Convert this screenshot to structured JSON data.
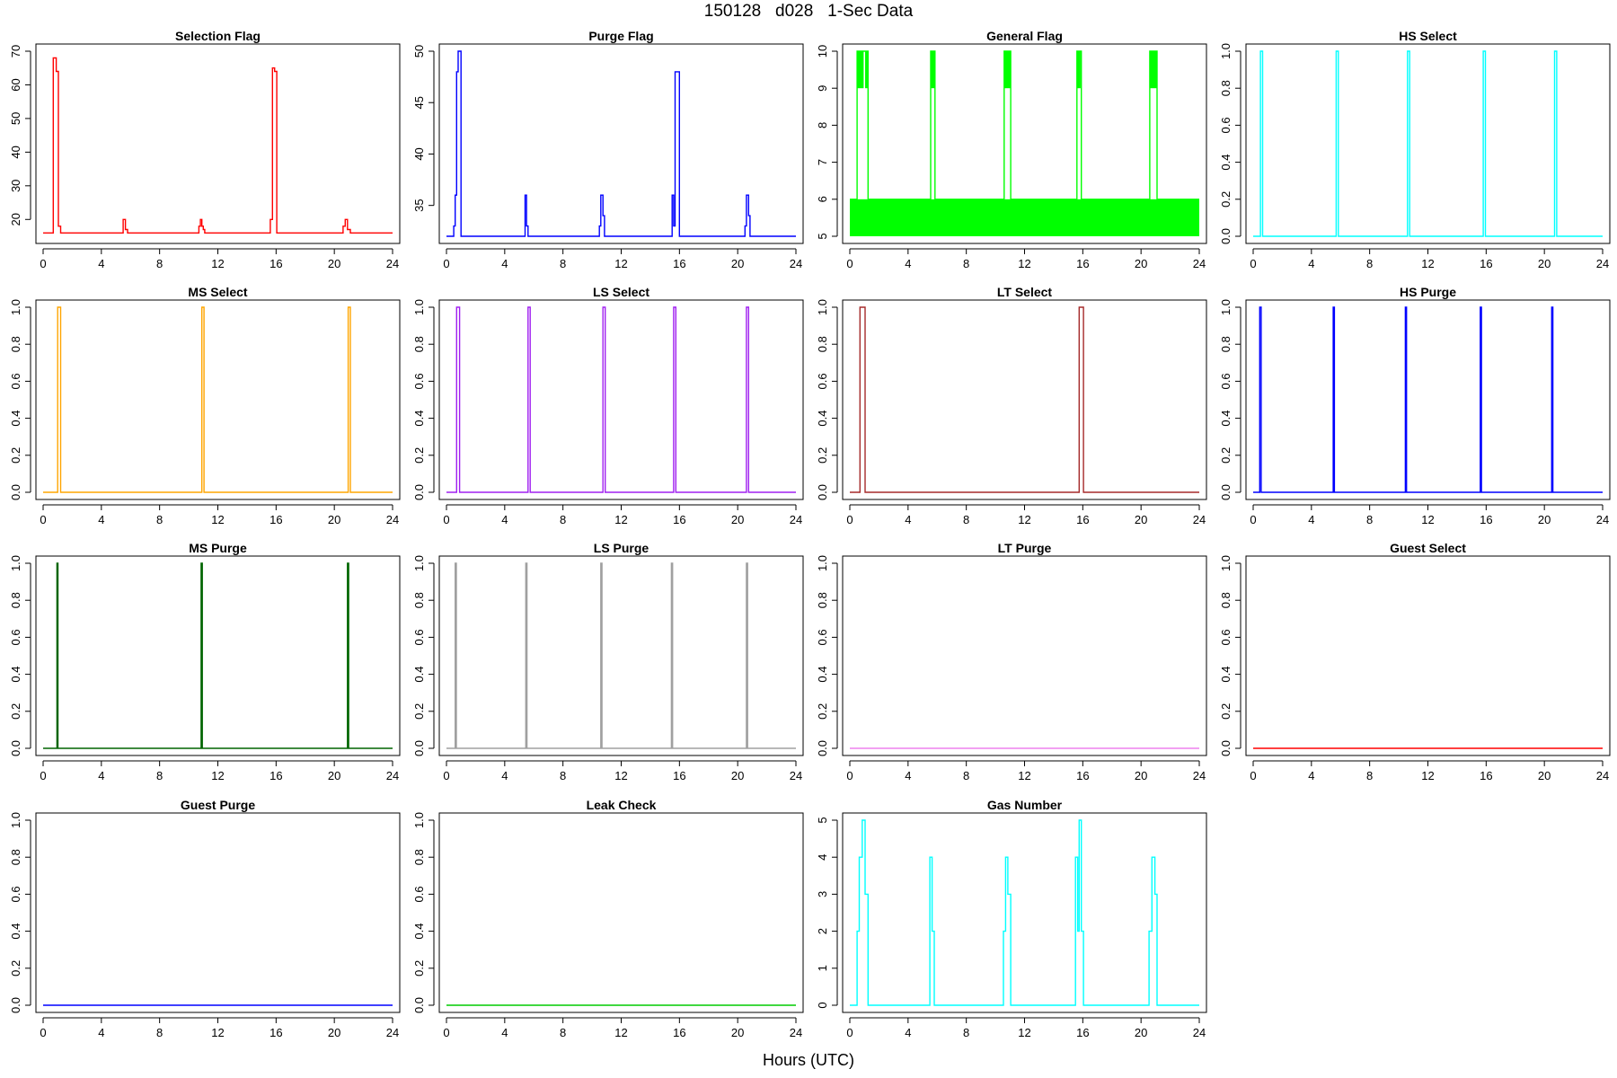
{
  "page_title": "150128   d028   1-Sec Data",
  "x_axis_title": "Hours (UTC)",
  "chart_data": [
    {
      "type": "line",
      "title": "Selection Flag",
      "color": "#ff0000",
      "xlim": [
        0,
        24
      ],
      "ylim": [
        15,
        70
      ],
      "x_ticks": [
        0,
        4,
        8,
        12,
        16,
        20,
        24
      ],
      "y_ticks": [
        20,
        30,
        40,
        50,
        60,
        70
      ],
      "series": [
        {
          "x": [
            0,
            0.7,
            0.7,
            0.9,
            0.9,
            1.05,
            1.05,
            1.2,
            1.2,
            5.5,
            5.5,
            5.65,
            5.65,
            5.8,
            5.8,
            10.7,
            10.7,
            10.8,
            10.8,
            10.9,
            10.9,
            11.0,
            11.0,
            11.1,
            11.1,
            15.6,
            15.6,
            15.75,
            15.75,
            15.9,
            15.9,
            16.05,
            16.05,
            20.6,
            20.6,
            20.75,
            20.75,
            20.9,
            20.9,
            21.1,
            21.1,
            24
          ],
          "y": [
            16,
            16,
            68,
            68,
            64,
            64,
            18,
            18,
            16,
            16,
            20,
            20,
            17,
            17,
            16,
            16,
            18,
            18,
            20,
            20,
            18,
            18,
            17,
            17,
            16,
            16,
            20,
            20,
            65,
            65,
            64,
            64,
            16,
            16,
            18,
            18,
            20,
            20,
            17,
            17,
            16,
            16
          ]
        }
      ]
    },
    {
      "type": "line",
      "title": "Purge Flag",
      "color": "#0000ff",
      "xlim": [
        0,
        24
      ],
      "ylim": [
        32,
        50
      ],
      "x_ticks": [
        0,
        4,
        8,
        12,
        16,
        20,
        24
      ],
      "y_ticks": [
        35,
        40,
        45,
        50
      ],
      "series": [
        {
          "x": [
            0,
            0.5,
            0.5,
            0.6,
            0.6,
            0.7,
            0.7,
            0.8,
            0.8,
            1.0,
            1.0,
            5.4,
            5.4,
            5.5,
            5.5,
            5.6,
            5.6,
            10.5,
            10.5,
            10.6,
            10.6,
            10.75,
            10.75,
            10.85,
            10.85,
            15.5,
            15.5,
            15.6,
            15.6,
            15.7,
            15.7,
            16.0,
            16.0,
            20.5,
            20.5,
            20.6,
            20.6,
            20.75,
            20.75,
            20.85,
            20.85,
            24
          ],
          "y": [
            32,
            32,
            33,
            33,
            36,
            36,
            48,
            48,
            50,
            50,
            32,
            32,
            36,
            36,
            33,
            33,
            32,
            32,
            33,
            33,
            36,
            36,
            34,
            34,
            32,
            32,
            36,
            36,
            33,
            33,
            48,
            48,
            32,
            32,
            33,
            33,
            36,
            36,
            34,
            34,
            32,
            32
          ]
        }
      ]
    },
    {
      "type": "area",
      "title": "General Flag",
      "color": "#00ff00",
      "xlim": [
        0,
        24
      ],
      "ylim": [
        5,
        10
      ],
      "x_ticks": [
        0,
        4,
        8,
        12,
        16,
        20,
        24
      ],
      "y_ticks": [
        5,
        6,
        7,
        8,
        9,
        10
      ],
      "bands": [
        {
          "x0": 0,
          "x1": 24,
          "y0": 5,
          "y1": 6
        }
      ],
      "bursts": [
        {
          "x0": 0.5,
          "x1": 0.95,
          "y0": 9,
          "y1": 10
        },
        {
          "x0": 1.05,
          "x1": 1.25,
          "y0": 9,
          "y1": 10
        },
        {
          "x0": 5.55,
          "x1": 5.85,
          "y0": 9,
          "y1": 10
        },
        {
          "x0": 10.6,
          "x1": 11.05,
          "y0": 9,
          "y1": 10
        },
        {
          "x0": 15.6,
          "x1": 15.85,
          "y0": 9,
          "y1": 10
        },
        {
          "x0": 20.6,
          "x1": 21.1,
          "y0": 9,
          "y1": 10
        }
      ],
      "series": [
        {
          "x": [
            0,
            0.5,
            0.5,
            1.25,
            1.25,
            5.55,
            5.55,
            5.85,
            5.85,
            10.6,
            10.6,
            11.05,
            11.05,
            15.6,
            15.6,
            15.9,
            15.9,
            20.6,
            20.6,
            21.1,
            21.1,
            24
          ],
          "y": [
            6,
            6,
            10,
            10,
            6,
            6,
            10,
            10,
            6,
            6,
            10,
            10,
            6,
            6,
            10,
            10,
            6,
            6,
            10,
            10,
            6,
            6
          ]
        }
      ]
    },
    {
      "type": "line",
      "title": "HS Select",
      "color": "#00ffff",
      "xlim": [
        0,
        24
      ],
      "ylim": [
        0,
        1
      ],
      "x_ticks": [
        0,
        4,
        8,
        12,
        16,
        20,
        24
      ],
      "y_ticks": [
        0.0,
        0.2,
        0.4,
        0.6,
        0.8,
        1.0
      ],
      "series": [
        {
          "x": [
            0,
            0.5,
            0.5,
            0.65,
            0.65,
            5.7,
            5.7,
            5.85,
            5.85,
            10.6,
            10.6,
            10.75,
            10.75,
            15.8,
            15.8,
            15.95,
            15.95,
            20.7,
            20.7,
            20.85,
            20.85,
            24
          ],
          "y": [
            0,
            0,
            1,
            1,
            0,
            0,
            1,
            1,
            0,
            0,
            1,
            1,
            0,
            0,
            1,
            1,
            0,
            0,
            1,
            1,
            0,
            0
          ]
        }
      ]
    },
    {
      "type": "line",
      "title": "MS Select",
      "color": "#ffa500",
      "xlim": [
        0,
        24
      ],
      "ylim": [
        0,
        1
      ],
      "x_ticks": [
        0,
        4,
        8,
        12,
        16,
        20,
        24
      ],
      "y_ticks": [
        0.0,
        0.2,
        0.4,
        0.6,
        0.8,
        1.0
      ],
      "series": [
        {
          "x": [
            0,
            1.0,
            1.0,
            1.2,
            1.2,
            10.9,
            10.9,
            11.05,
            11.05,
            20.95,
            20.95,
            21.1,
            21.1,
            24
          ],
          "y": [
            0,
            0,
            1,
            1,
            0,
            0,
            1,
            1,
            0,
            0,
            1,
            1,
            0,
            0
          ]
        }
      ]
    },
    {
      "type": "line",
      "title": "LS Select",
      "color": "#a020f0",
      "xlim": [
        0,
        24
      ],
      "ylim": [
        0,
        1
      ],
      "x_ticks": [
        0,
        4,
        8,
        12,
        16,
        20,
        24
      ],
      "y_ticks": [
        0.0,
        0.2,
        0.4,
        0.6,
        0.8,
        1.0
      ],
      "series": [
        {
          "x": [
            0,
            0.7,
            0.7,
            0.9,
            0.9,
            5.6,
            5.6,
            5.75,
            5.75,
            10.75,
            10.75,
            10.9,
            10.9,
            15.6,
            15.6,
            15.75,
            15.75,
            20.6,
            20.6,
            20.75,
            20.75,
            24
          ],
          "y": [
            0,
            0,
            1,
            1,
            0,
            0,
            1,
            1,
            0,
            0,
            1,
            1,
            0,
            0,
            1,
            1,
            0,
            0,
            1,
            1,
            0,
            0
          ]
        }
      ]
    },
    {
      "type": "line",
      "title": "LT Select",
      "color": "#a52a2a",
      "xlim": [
        0,
        24
      ],
      "ylim": [
        0,
        1
      ],
      "x_ticks": [
        0,
        4,
        8,
        12,
        16,
        20,
        24
      ],
      "y_ticks": [
        0.0,
        0.2,
        0.4,
        0.6,
        0.8,
        1.0
      ],
      "series": [
        {
          "x": [
            0,
            0.7,
            0.7,
            1.05,
            1.05,
            15.75,
            15.75,
            16.05,
            16.05,
            24
          ],
          "y": [
            0,
            0,
            1,
            1,
            0,
            0,
            1,
            1,
            0,
            0
          ]
        }
      ]
    },
    {
      "type": "line",
      "title": "HS Purge",
      "color": "#0000ff",
      "xlim": [
        0,
        24
      ],
      "ylim": [
        0,
        1
      ],
      "x_ticks": [
        0,
        4,
        8,
        12,
        16,
        20,
        24
      ],
      "y_ticks": [
        0.0,
        0.2,
        0.4,
        0.6,
        0.8,
        1.0
      ],
      "series": [
        {
          "x": [
            0,
            0.45,
            0.45,
            0.55,
            0.55,
            5.5,
            5.5,
            5.58,
            5.58,
            10.45,
            10.45,
            10.53,
            10.53,
            15.6,
            15.6,
            15.68,
            15.68,
            20.5,
            20.5,
            20.58,
            20.58,
            24
          ],
          "y": [
            0,
            0,
            1,
            1,
            0,
            0,
            1,
            1,
            0,
            0,
            1,
            1,
            0,
            0,
            1,
            1,
            0,
            0,
            1,
            1,
            0,
            0
          ]
        }
      ]
    },
    {
      "type": "line",
      "title": "MS Purge",
      "color": "#006400",
      "xlim": [
        0,
        24
      ],
      "ylim": [
        0,
        1
      ],
      "x_ticks": [
        0,
        4,
        8,
        12,
        16,
        20,
        24
      ],
      "y_ticks": [
        0.0,
        0.2,
        0.4,
        0.6,
        0.8,
        1.0
      ],
      "series": [
        {
          "x": [
            0,
            0.95,
            0.95,
            1.02,
            1.02,
            10.85,
            10.85,
            10.93,
            10.93,
            20.9,
            20.9,
            20.98,
            20.98,
            24
          ],
          "y": [
            0,
            0,
            1,
            1,
            0,
            0,
            1,
            1,
            0,
            0,
            1,
            1,
            0,
            0
          ]
        }
      ]
    },
    {
      "type": "line",
      "title": "LS Purge",
      "color": "#a0a0a0",
      "xlim": [
        0,
        24
      ],
      "ylim": [
        0,
        1
      ],
      "x_ticks": [
        0,
        4,
        8,
        12,
        16,
        20,
        24
      ],
      "y_ticks": [
        0.0,
        0.2,
        0.4,
        0.6,
        0.8,
        1.0
      ],
      "series": [
        {
          "x": [
            0,
            0.6,
            0.6,
            0.68,
            0.68,
            5.45,
            5.45,
            5.53,
            5.53,
            10.6,
            10.6,
            10.68,
            10.68,
            15.45,
            15.45,
            15.53,
            15.53,
            20.6,
            20.6,
            20.68,
            20.68,
            24
          ],
          "y": [
            0,
            0,
            1,
            1,
            0,
            0,
            1,
            1,
            0,
            0,
            1,
            1,
            0,
            0,
            1,
            1,
            0,
            0,
            1,
            1,
            0,
            0
          ]
        }
      ]
    },
    {
      "type": "line",
      "title": "LT Purge",
      "color": "#ee82ee",
      "xlim": [
        0,
        24
      ],
      "ylim": [
        0,
        1
      ],
      "x_ticks": [
        0,
        4,
        8,
        12,
        16,
        20,
        24
      ],
      "y_ticks": [
        0.0,
        0.2,
        0.4,
        0.6,
        0.8,
        1.0
      ],
      "series": [
        {
          "x": [
            0,
            24
          ],
          "y": [
            0,
            0
          ]
        }
      ]
    },
    {
      "type": "line",
      "title": "Guest Select",
      "color": "#ff0000",
      "xlim": [
        0,
        24
      ],
      "ylim": [
        0,
        1
      ],
      "x_ticks": [
        0,
        4,
        8,
        12,
        16,
        20,
        24
      ],
      "y_ticks": [
        0.0,
        0.2,
        0.4,
        0.6,
        0.8,
        1.0
      ],
      "series": [
        {
          "x": [
            0,
            24
          ],
          "y": [
            0,
            0
          ]
        }
      ]
    },
    {
      "type": "line",
      "title": "Guest Purge",
      "color": "#0000ff",
      "xlim": [
        0,
        24
      ],
      "ylim": [
        0,
        1
      ],
      "x_ticks": [
        0,
        4,
        8,
        12,
        16,
        20,
        24
      ],
      "y_ticks": [
        0.0,
        0.2,
        0.4,
        0.6,
        0.8,
        1.0
      ],
      "series": [
        {
          "x": [
            0,
            24
          ],
          "y": [
            0,
            0
          ]
        }
      ]
    },
    {
      "type": "line",
      "title": "Leak Check",
      "color": "#00cc00",
      "xlim": [
        0,
        24
      ],
      "ylim": [
        0,
        1
      ],
      "x_ticks": [
        0,
        4,
        8,
        12,
        16,
        20,
        24
      ],
      "y_ticks": [
        0.0,
        0.2,
        0.4,
        0.6,
        0.8,
        1.0
      ],
      "series": [
        {
          "x": [
            0,
            24
          ],
          "y": [
            0,
            0
          ]
        }
      ]
    },
    {
      "type": "line",
      "title": "Gas Number",
      "color": "#00ffff",
      "xlim": [
        0,
        24
      ],
      "ylim": [
        0,
        5
      ],
      "x_ticks": [
        0,
        4,
        8,
        12,
        16,
        20,
        24
      ],
      "y_ticks": [
        0,
        1,
        2,
        3,
        4,
        5
      ],
      "series": [
        {
          "x": [
            0,
            0.5,
            0.5,
            0.65,
            0.65,
            0.85,
            0.85,
            1.05,
            1.05,
            1.25,
            1.25,
            5.5,
            5.5,
            5.65,
            5.65,
            5.8,
            5.8,
            10.55,
            10.55,
            10.7,
            10.7,
            10.85,
            10.85,
            11.05,
            11.05,
            15.5,
            15.5,
            15.65,
            15.65,
            15.75,
            15.75,
            15.9,
            15.9,
            16.05,
            16.05,
            20.55,
            20.55,
            20.75,
            20.75,
            20.95,
            20.95,
            21.1,
            21.1,
            24
          ],
          "y": [
            0,
            0,
            2,
            2,
            4,
            4,
            5,
            5,
            3,
            3,
            0,
            0,
            4,
            4,
            2,
            2,
            0,
            0,
            2,
            2,
            4,
            4,
            3,
            3,
            0,
            0,
            4,
            4,
            2,
            2,
            5,
            5,
            2,
            2,
            0,
            0,
            2,
            2,
            4,
            4,
            3,
            3,
            0,
            0
          ]
        }
      ]
    }
  ]
}
